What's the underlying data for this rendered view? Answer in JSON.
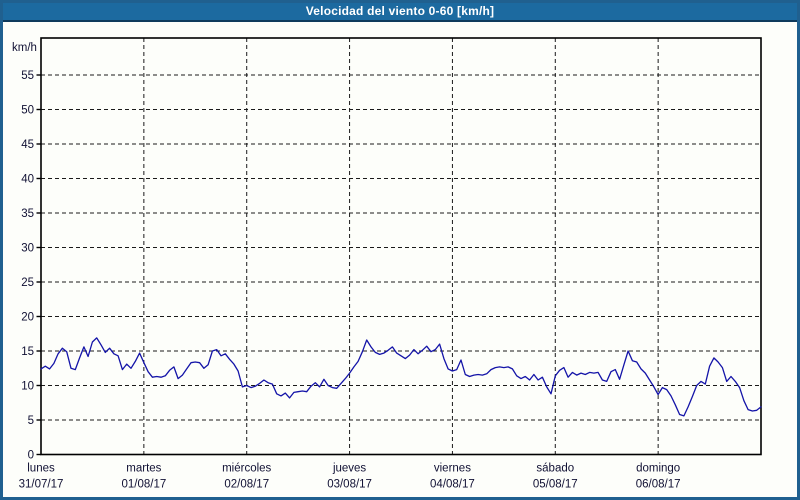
{
  "window": {
    "title": "Velocidad del viento 0-60 [km/h]"
  },
  "colors": {
    "titlebar_bg": "#1c6aa0",
    "titlebar_edge": "#0e3a5c",
    "frame_border": "#20608f",
    "plot_bg": "#fdfefa",
    "grid": "#1a1a1a",
    "axis": "#000000",
    "label_text": "#101033",
    "line": "#1414a8"
  },
  "chart_data": {
    "type": "line",
    "title": "Velocidad del viento 0-60 [km/h]",
    "ylabel": "km/h",
    "ylim": [
      0,
      60
    ],
    "yticks": [
      0,
      5,
      10,
      15,
      20,
      25,
      30,
      35,
      40,
      45,
      50,
      55
    ],
    "grid": "dashed",
    "legend_position": "none",
    "points_per_day": 24,
    "days": [
      {
        "name": "lunes",
        "date": "31/07/17"
      },
      {
        "name": "martes",
        "date": "01/08/17"
      },
      {
        "name": "miércoles",
        "date": "02/08/17"
      },
      {
        "name": "jueves",
        "date": "03/08/17"
      },
      {
        "name": "viernes",
        "date": "04/08/17"
      },
      {
        "name": "sábado",
        "date": "05/08/17"
      },
      {
        "name": "domingo",
        "date": "06/08/17"
      }
    ],
    "series": [
      {
        "name": "velocidad del viento",
        "unit": "km/h",
        "color": "#1414a8",
        "values": [
          12.4,
          12.8,
          12.4,
          13.2,
          14.6,
          15.4,
          14.9,
          12.5,
          12.3,
          14.0,
          15.6,
          14.2,
          16.3,
          16.9,
          15.9,
          14.8,
          15.4,
          14.6,
          14.3,
          12.3,
          13.1,
          12.5,
          13.5,
          14.7,
          13.3,
          12.0,
          11.2,
          11.3,
          11.2,
          11.4,
          12.2,
          12.7,
          11.0,
          11.5,
          12.4,
          13.3,
          13.4,
          13.3,
          12.5,
          13.0,
          15.0,
          15.2,
          14.3,
          14.6,
          13.8,
          13.1,
          12.1,
          9.8,
          10.0,
          9.7,
          9.9,
          10.3,
          10.8,
          10.4,
          10.2,
          8.8,
          8.5,
          8.9,
          8.2,
          9.0,
          9.1,
          9.2,
          9.1,
          9.9,
          10.4,
          9.8,
          10.9,
          10.0,
          9.7,
          9.6,
          10.3,
          11.0,
          11.8,
          12.7,
          13.5,
          14.9,
          16.6,
          15.6,
          14.8,
          14.5,
          14.7,
          15.1,
          15.6,
          14.7,
          14.3,
          13.9,
          14.4,
          15.2,
          14.6,
          15.1,
          15.7,
          14.9,
          15.2,
          16.0,
          13.9,
          12.4,
          12.1,
          12.3,
          13.7,
          11.6,
          11.3,
          11.5,
          11.6,
          11.5,
          11.7,
          12.3,
          12.6,
          12.7,
          12.6,
          12.7,
          12.4,
          11.4,
          11.0,
          11.3,
          10.8,
          11.6,
          10.8,
          11.2,
          9.8,
          8.8,
          11.4,
          12.2,
          12.6,
          11.2,
          11.9,
          11.5,
          11.8,
          11.6,
          11.9,
          11.8,
          11.9,
          10.8,
          10.6,
          12.0,
          12.3,
          10.9,
          13.0,
          15.0,
          13.6,
          13.4,
          12.4,
          11.8,
          10.8,
          9.8,
          8.7,
          9.7,
          9.4,
          8.5,
          7.2,
          5.8,
          5.6,
          6.9,
          8.4,
          10.0,
          10.6,
          10.2,
          12.8,
          14.0,
          13.4,
          12.6,
          10.6,
          11.3,
          10.6,
          9.7,
          7.8,
          6.5,
          6.3,
          6.4,
          6.9
        ]
      }
    ]
  }
}
